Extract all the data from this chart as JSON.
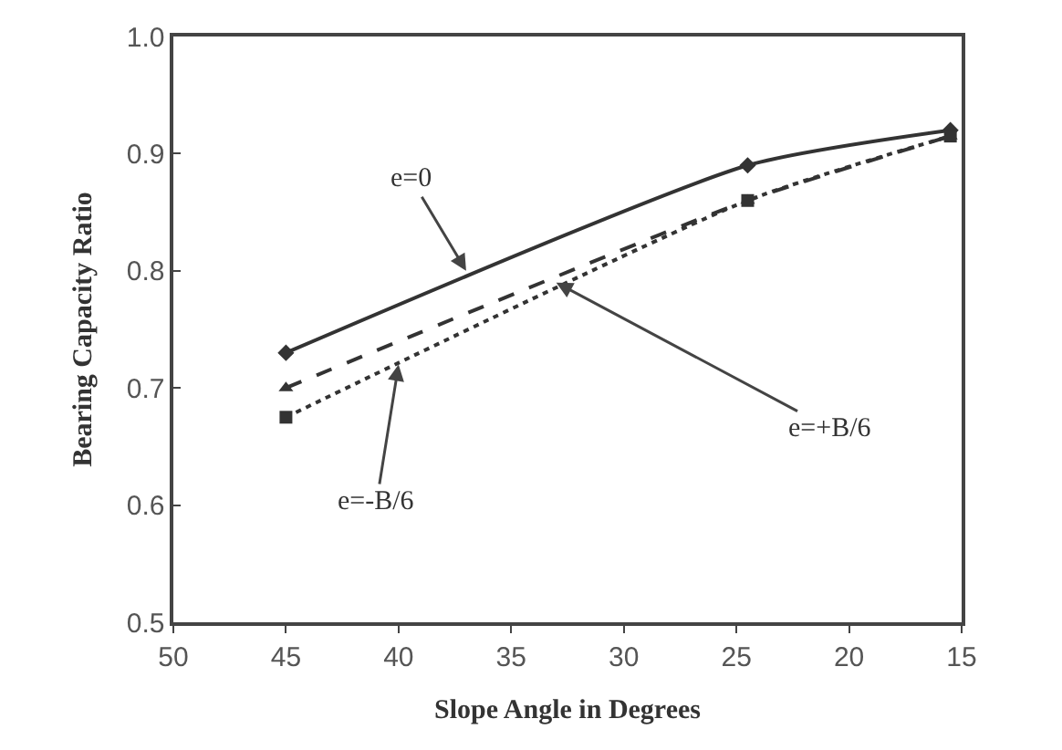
{
  "chart_data": {
    "type": "line",
    "xlabel": "Slope Angle in Degrees",
    "ylabel": "Bearing Capacity Ratio",
    "x": [
      45,
      24.5,
      15.5
    ],
    "series": [
      {
        "color": "#333333",
        "values": [
          0.73,
          0.89,
          0.92
        ],
        "marker": "diamond",
        "line_style": "solid"
      },
      {
        "color": "#333333",
        "values": [
          0.7,
          0.86,
          0.915
        ],
        "marker": "triangle",
        "line_style": "dashed"
      },
      {
        "color": "#333333",
        "values": [
          0.675,
          0.86,
          0.915
        ],
        "marker": "square",
        "line_style": "dotted"
      }
    ],
    "annotations": [
      {
        "text": "e=0",
        "x": 37,
        "y": 0.8
      },
      {
        "text": "e=+B/6",
        "x": 33,
        "y": 0.79
      },
      {
        "text": "e=-B/6",
        "x": 40,
        "y": 0.72
      }
    ],
    "xlim": [
      50,
      15
    ],
    "xticks": [
      50,
      45,
      40,
      35,
      30,
      25,
      20,
      15
    ],
    "ylim": [
      0.5,
      1.0
    ],
    "yticks": [
      {
        "value": 0.5,
        "label": "0.5"
      },
      {
        "value": 0.6,
        "label": "0.6"
      },
      {
        "value": 0.7,
        "label": "0.7"
      },
      {
        "value": 0.8,
        "label": "0.8"
      },
      {
        "value": 0.9,
        "label": "0.9"
      },
      {
        "value": 1.0,
        "label": "1.0"
      }
    ]
  }
}
